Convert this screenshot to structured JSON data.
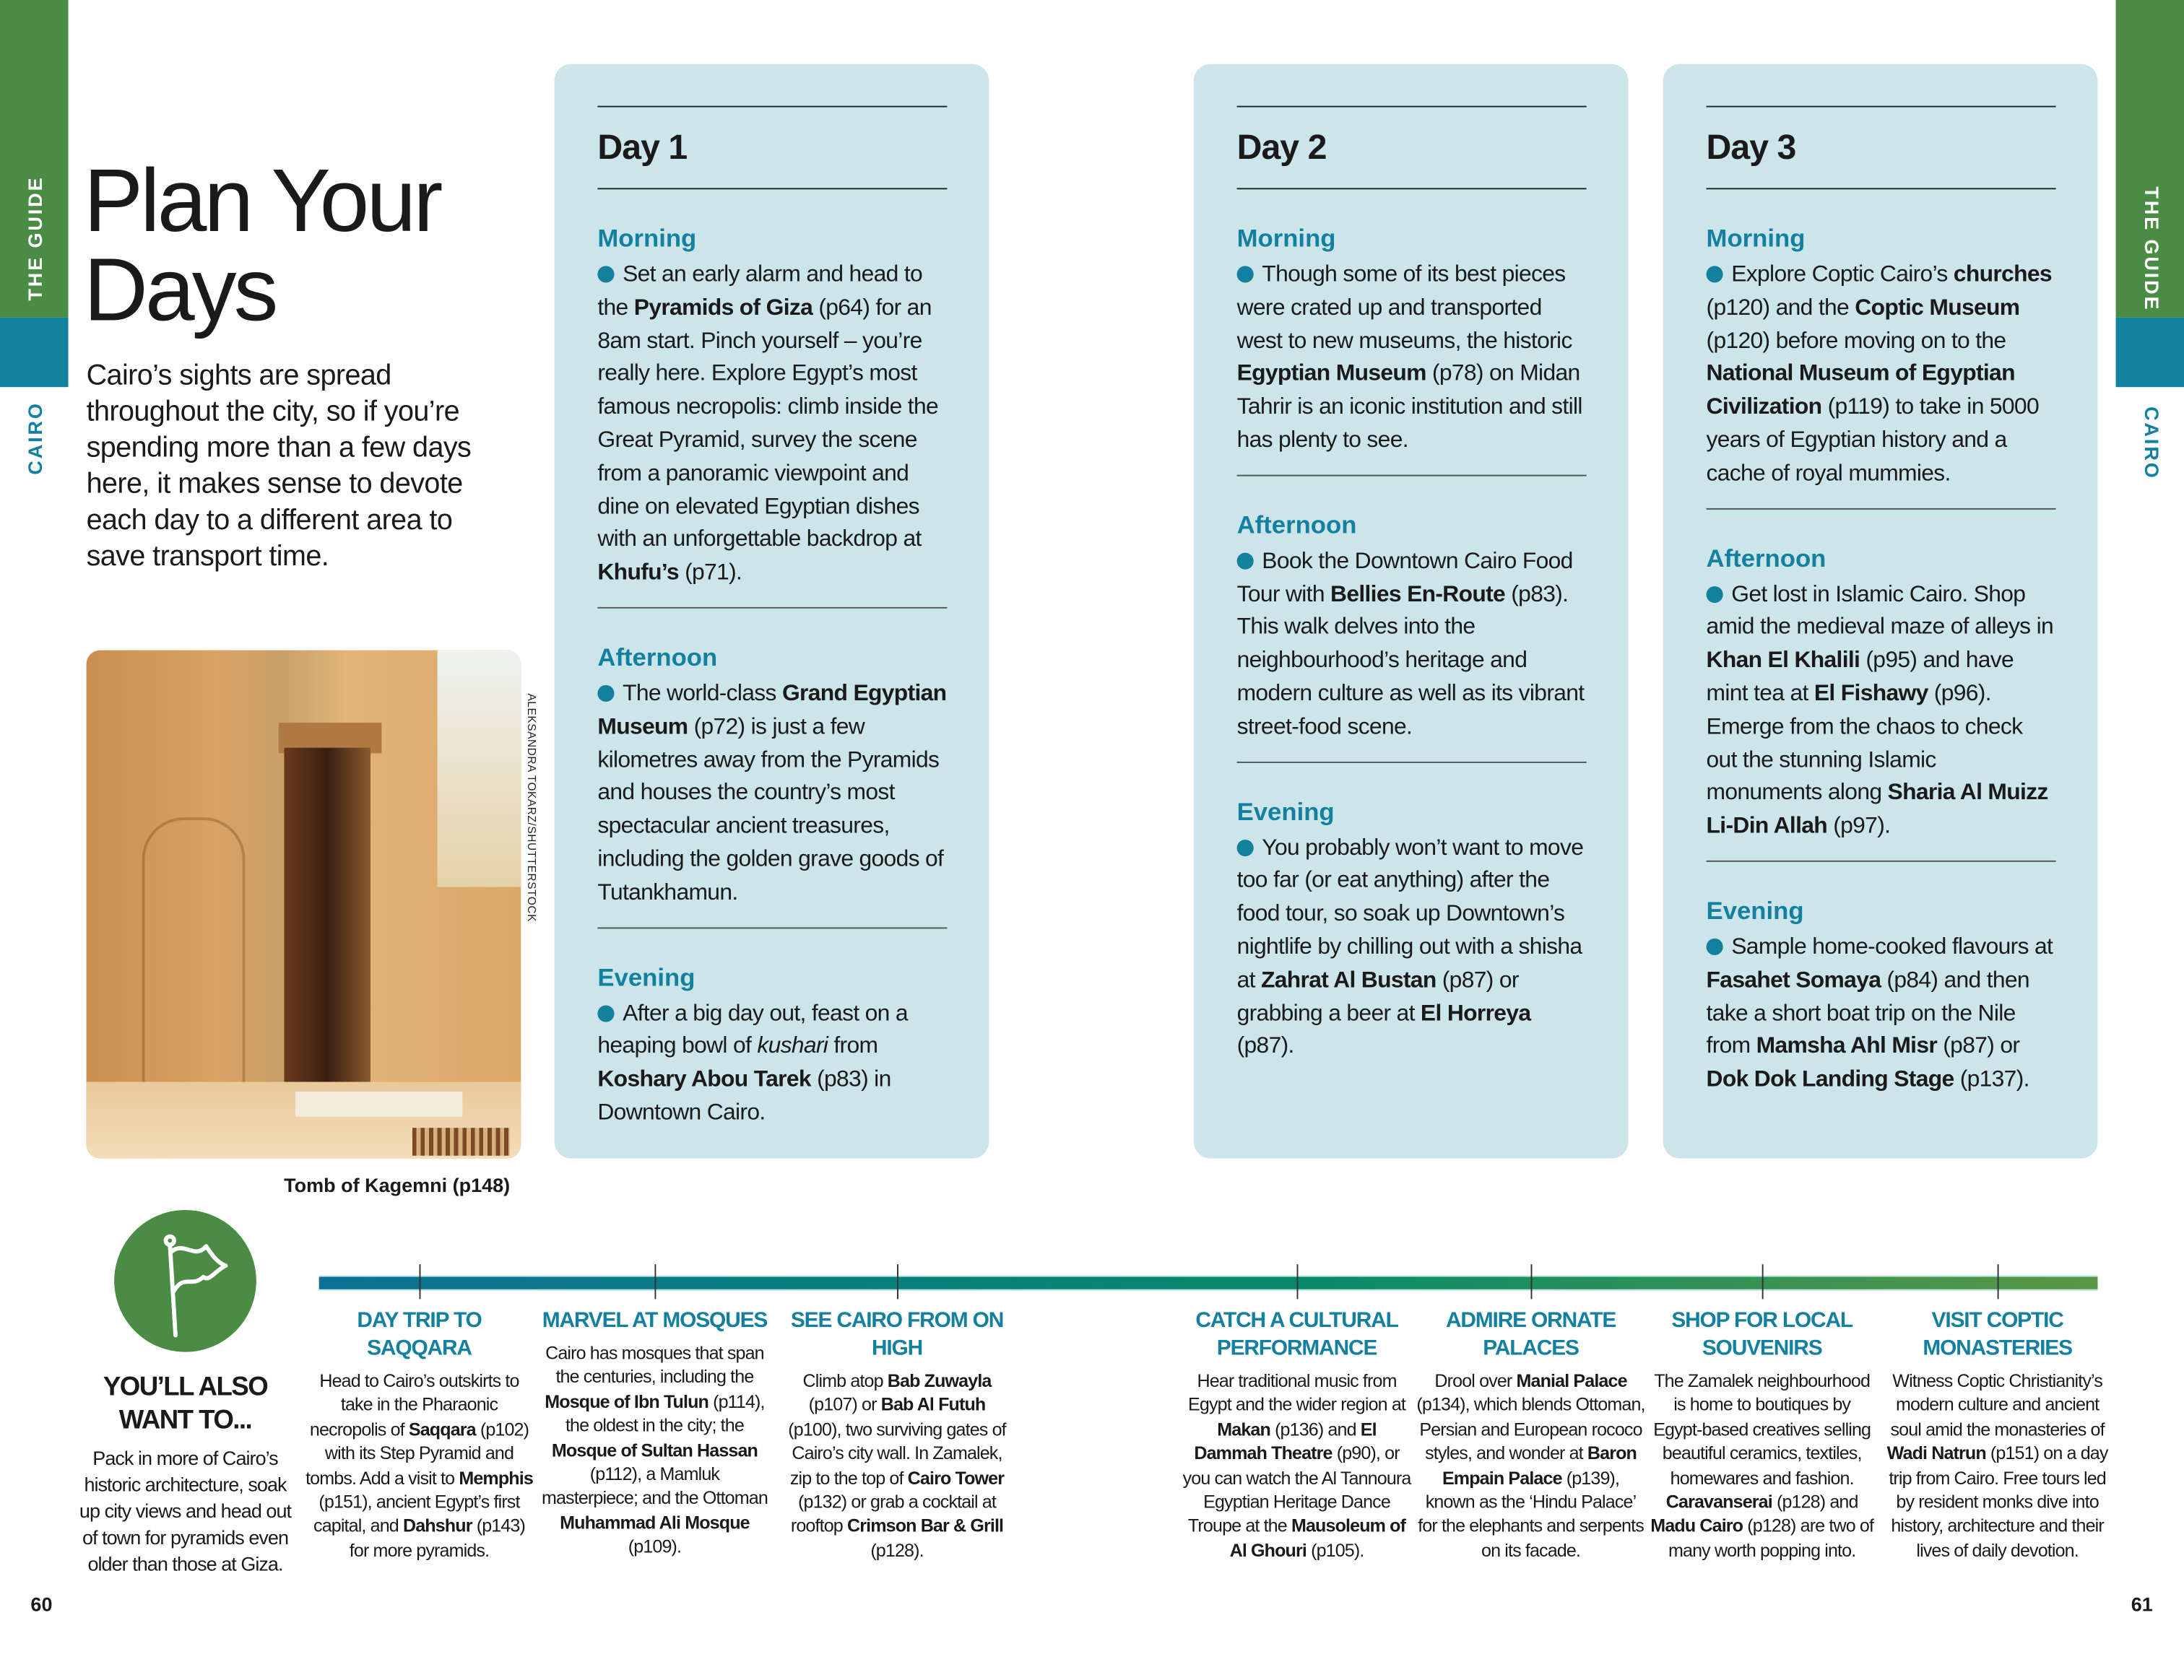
{
  "strip": {
    "section": "THE GUIDE",
    "city": "CAIRO",
    "colors": {
      "green": "#4b8c45",
      "teal": "#12809f"
    }
  },
  "title": "Plan Your Days",
  "intro": "Cairo’s sights are spread throughout the city, so if you’re spending more than a few days here, it makes sense to devote each day to a different area to save transport time.",
  "photo": {
    "credit": "ALEKSANDRA TOKARZ/SHUTTERSTOCK",
    "caption": "Tomb of Kagemni (p148)"
  },
  "days": [
    {
      "title": "Day 1",
      "sections": [
        {
          "heading": "Morning",
          "text": [
            [
              "Set an early alarm and head to the ",
              ""
            ],
            [
              "Pyramids of Giza",
              "b"
            ],
            [
              " (p64) for an 8am start. Pinch yourself – you’re really here. Explore Egypt’s most famous necropolis: climb inside the Great Pyramid, survey the scene from a panoramic viewpoint and dine on elevated Egyptian dishes with an unforgettable backdrop at ",
              ""
            ],
            [
              "Khufu’s",
              "b"
            ],
            [
              " (p71).",
              ""
            ]
          ]
        },
        {
          "heading": "Afternoon",
          "text": [
            [
              "The world-class ",
              ""
            ],
            [
              "Grand Egyptian Museum",
              "b"
            ],
            [
              " (p72) is just a few kilometres away from the Pyramids and houses the country’s most spectacular ancient treasures, including the golden grave goods of Tutankhamun.",
              ""
            ]
          ]
        },
        {
          "heading": "Evening",
          "text": [
            [
              "After a big day out, feast on a heaping bowl of ",
              ""
            ],
            [
              "kushari",
              "i"
            ],
            [
              " from ",
              ""
            ],
            [
              "Koshary Abou Tarek",
              "b"
            ],
            [
              " (p83) in Downtown Cairo.",
              ""
            ]
          ]
        }
      ]
    },
    {
      "title": "Day 2",
      "sections": [
        {
          "heading": "Morning",
          "text": [
            [
              "Though some of its best pieces were crated up and transported west to new museums, the historic ",
              ""
            ],
            [
              "Egyptian Museum",
              "b"
            ],
            [
              " (p78) on Midan Tahrir is an iconic institution and still has plenty to see.",
              ""
            ]
          ]
        },
        {
          "heading": "Afternoon",
          "text": [
            [
              "Book the Downtown Cairo Food Tour with ",
              ""
            ],
            [
              "Bellies En-Route",
              "b"
            ],
            [
              " (p83). This walk delves into the neighbourhood’s heritage and modern culture as well as its vibrant street-food scene.",
              ""
            ]
          ]
        },
        {
          "heading": "Evening",
          "text": [
            [
              "You probably won’t want to move too far (or eat anything) after the food tour, so soak up Downtown’s nightlife by chilling out with a shisha at ",
              ""
            ],
            [
              "Zahrat Al Bustan",
              "b"
            ],
            [
              " (p87) or grabbing a beer at ",
              ""
            ],
            [
              "El Horreya",
              "b"
            ],
            [
              " (p87).",
              ""
            ]
          ]
        }
      ]
    },
    {
      "title": "Day 3",
      "sections": [
        {
          "heading": "Morning",
          "text": [
            [
              "Explore Coptic Cairo’s ",
              ""
            ],
            [
              "churches",
              "b"
            ],
            [
              " (p120) and the ",
              ""
            ],
            [
              "Coptic Museum",
              "b"
            ],
            [
              " (p120) before moving on to the ",
              ""
            ],
            [
              "National Museum of Egyptian Civilization",
              "b"
            ],
            [
              " (p119) to take in 5000 years of Egyptian history and a cache of royal mummies.",
              ""
            ]
          ]
        },
        {
          "heading": "Afternoon",
          "text": [
            [
              "Get lost in Islamic Cairo. Shop amid the medieval maze of alleys in ",
              ""
            ],
            [
              "Khan El Khalili",
              "b"
            ],
            [
              " (p95) and have mint tea at ",
              ""
            ],
            [
              "El Fishawy",
              "b"
            ],
            [
              " (p96). Emerge from the chaos to check out the stunning Islamic monuments along ",
              ""
            ],
            [
              "Sharia Al Muizz Li-Din Allah",
              "b"
            ],
            [
              " (p97).",
              ""
            ]
          ]
        },
        {
          "heading": "Evening",
          "text": [
            [
              "Sample home-cooked flavours at ",
              ""
            ],
            [
              "Fasahet Somaya",
              "b"
            ],
            [
              " (p84) and then take a short boat trip on the Nile from ",
              ""
            ],
            [
              "Mamsha Ahl Misr",
              "b"
            ],
            [
              " (p87) or ",
              ""
            ],
            [
              "Dok Dok Landing Stage",
              "b"
            ],
            [
              " (p137).",
              ""
            ]
          ]
        }
      ]
    }
  ],
  "also": {
    "icon": "flag-icon",
    "title": "YOU’LL ALSO WANT TO...",
    "text": "Pack in more of Cairo’s historic architecture, soak up city views and head out of town for pyramids even older than those at Giza.",
    "items": [
      {
        "heading": "DAY TRIP TO SAQQARA",
        "text": [
          [
            "Head to Cairo’s outskirts to take in the Pharaonic necropolis of ",
            ""
          ],
          [
            "Saqqara",
            "b"
          ],
          [
            " (p102) with its Step Pyramid and tombs. Add a visit to ",
            ""
          ],
          [
            "Memphis",
            "b"
          ],
          [
            " (p151), ancient Egypt’s first capital, and ",
            ""
          ],
          [
            "Dah­shur",
            "b"
          ],
          [
            " (p143) for more pyramids.",
            ""
          ]
        ]
      },
      {
        "heading": "MARVEL AT MOSQUES",
        "text": [
          [
            "Cairo has mosques that span the centuries, including the ",
            ""
          ],
          [
            "Mosque of Ibn Tulun",
            "b"
          ],
          [
            " (p114), the oldest in the city; the ",
            ""
          ],
          [
            "Mosque of Sultan Hassan",
            "b"
          ],
          [
            " (p112), a Mamluk masterpiece; and the Ottoman ",
            ""
          ],
          [
            "Muhammad Ali Mosque",
            "b"
          ],
          [
            " (p109).",
            ""
          ]
        ]
      },
      {
        "heading": "SEE CAIRO FROM ON HIGH",
        "text": [
          [
            "Climb atop ",
            ""
          ],
          [
            "Bab Zuwayla",
            "b"
          ],
          [
            " (p107) or ",
            ""
          ],
          [
            "Bab Al Futuh",
            "b"
          ],
          [
            " (p100), two surviving gates of Cairo’s city wall. In Zamalek, zip to the top of ",
            ""
          ],
          [
            "Cairo Tower",
            "b"
          ],
          [
            " (p132) or grab a cocktail at rooftop ",
            ""
          ],
          [
            "Crimson Bar & Grill",
            "b"
          ],
          [
            " (p128).",
            ""
          ]
        ]
      },
      {
        "heading": "CATCH A CULTURAL PERFORMANCE",
        "text": [
          [
            "Hear traditional music from Egypt and the wider region at ",
            ""
          ],
          [
            "Makan",
            "b"
          ],
          [
            " (p136) and ",
            ""
          ],
          [
            "El Dammah Theatre",
            "b"
          ],
          [
            " (p90), or you can watch the Al Tannoura Egyptian Heritage Dance Troupe at the ",
            ""
          ],
          [
            "Mausoleum of Al Ghouri",
            "b"
          ],
          [
            " (p105).",
            ""
          ]
        ]
      },
      {
        "heading": "ADMIRE ORNATE PALACES",
        "text": [
          [
            "Drool over ",
            ""
          ],
          [
            "Manial Pal­ace",
            "b"
          ],
          [
            " (p134), which blends Ottoman, Persian and European rococo styles, and wonder at ",
            ""
          ],
          [
            "Baron Empain Palace",
            "b"
          ],
          [
            " (p139), known as the ‘Hindu Palace’ for the elephants and serpents on its facade.",
            ""
          ]
        ]
      },
      {
        "heading": "SHOP FOR LOCAL SOUVENIRS",
        "text": [
          [
            "The Zamalek neigh­bourhood is home to boutiques by Egypt-based creatives selling beautiful ceramics, textiles, homewares and fashion. ",
            ""
          ],
          [
            "Caravanserai",
            "b"
          ],
          [
            " (p128) and ",
            ""
          ],
          [
            "Madu Cairo",
            "b"
          ],
          [
            " (p128) are two of many worth popping into.",
            ""
          ]
        ]
      },
      {
        "heading": "VISIT COPTIC MONASTERIES",
        "text": [
          [
            "Witness Coptic Christianity’s modern culture and ancient soul amid the monasteries of ",
            ""
          ],
          [
            "Wadi Natrun",
            "b"
          ],
          [
            " (p151) on a day trip from Cairo. Free tours led by resident monks dive into history, architecture and their lives of daily devotion.",
            ""
          ]
        ]
      }
    ]
  },
  "page_numbers": {
    "left": "60",
    "right": "61"
  }
}
